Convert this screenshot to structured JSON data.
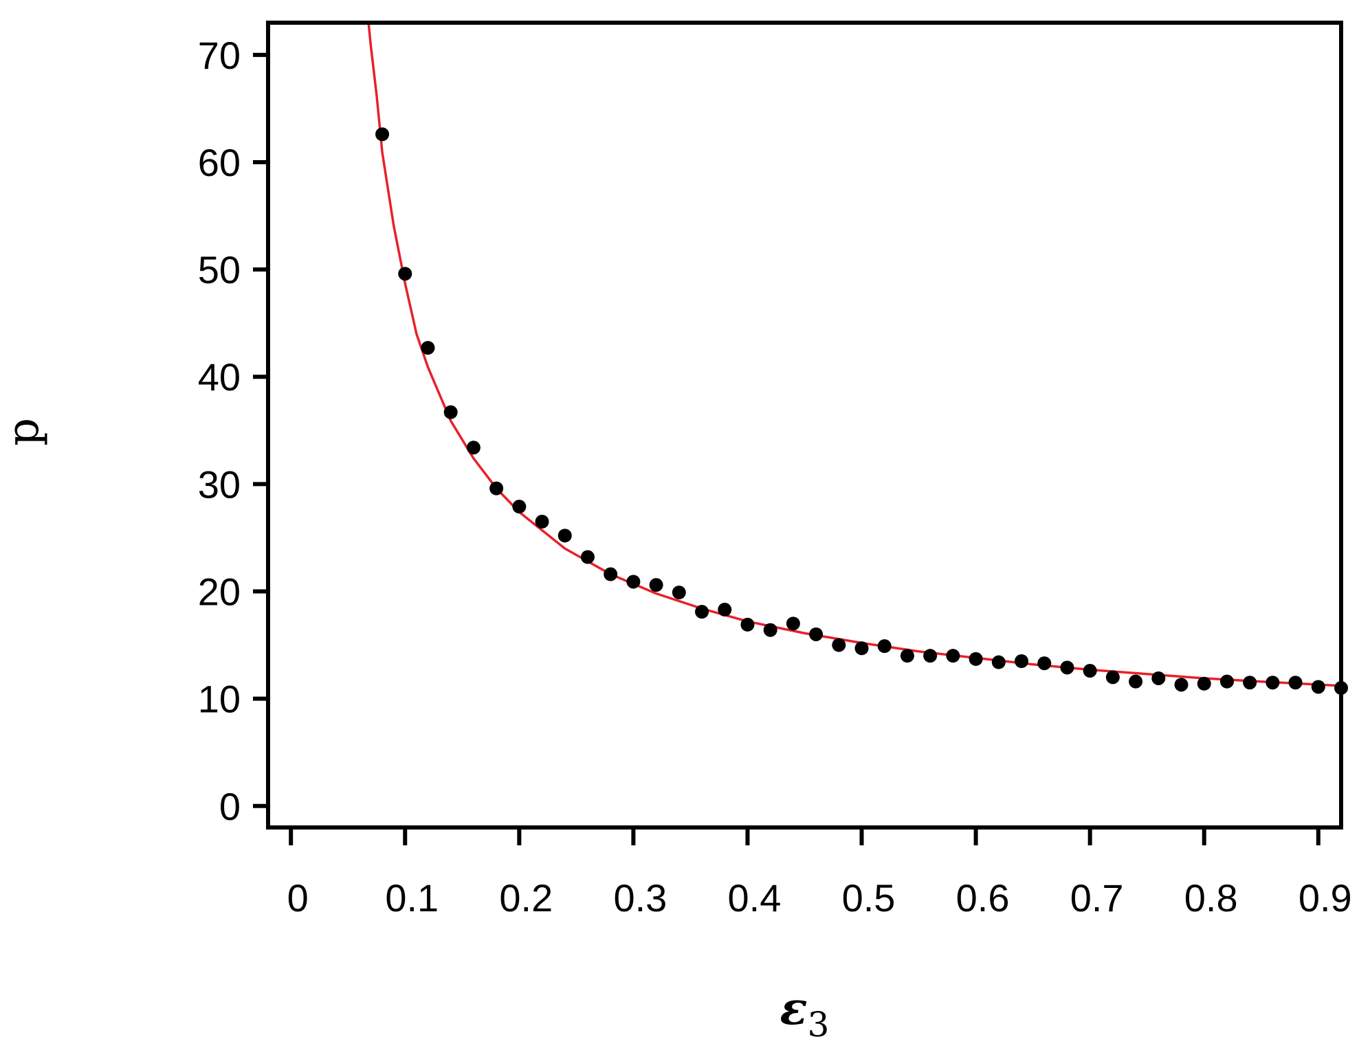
{
  "chart_data": {
    "type": "scatter",
    "xlabel": "ε",
    "xlabel_subscript": "3",
    "ylabel": "p",
    "xlim": [
      -0.02,
      0.92
    ],
    "ylim": [
      -2,
      73
    ],
    "x_ticks": [
      0,
      0.1,
      0.2,
      0.3,
      0.4,
      0.5,
      0.6,
      0.7,
      0.8,
      0.9
    ],
    "x_tick_labels": [
      "0",
      "0.1",
      "0.2",
      "0.3",
      "0.4",
      "0.5",
      "0.6",
      "0.7",
      "0.8",
      "0.9"
    ],
    "y_ticks": [
      0,
      10,
      20,
      30,
      40,
      50,
      60,
      70
    ],
    "y_tick_labels": [
      "0",
      "10",
      "20",
      "30",
      "40",
      "50",
      "60",
      "70"
    ],
    "grid": false,
    "series": [
      {
        "kind": "scatter",
        "color": "#000000",
        "x": [
          0.08,
          0.1,
          0.12,
          0.14,
          0.16,
          0.18,
          0.2,
          0.22,
          0.24,
          0.26,
          0.28,
          0.3,
          0.32,
          0.34,
          0.36,
          0.38,
          0.4,
          0.42,
          0.44,
          0.46,
          0.48,
          0.5,
          0.52,
          0.54,
          0.56,
          0.58,
          0.6,
          0.62,
          0.64,
          0.66,
          0.68,
          0.7,
          0.72,
          0.74,
          0.76,
          0.78,
          0.8,
          0.82,
          0.84,
          0.86,
          0.88,
          0.9,
          0.92
        ],
        "y": [
          62.6,
          49.6,
          42.7,
          36.7,
          33.4,
          29.6,
          27.9,
          26.5,
          25.2,
          23.2,
          21.6,
          20.9,
          20.6,
          19.9,
          18.1,
          18.3,
          16.9,
          16.4,
          17.0,
          16.0,
          15.0,
          14.7,
          14.9,
          14.0,
          14.0,
          14.0,
          13.7,
          13.4,
          13.5,
          13.3,
          12.9,
          12.6,
          12.0,
          11.6,
          11.9,
          11.3,
          11.4,
          11.6,
          11.5,
          11.5,
          11.5,
          11.1,
          11.0
        ]
      },
      {
        "kind": "fit-line",
        "color": "#e8202a",
        "x": [
          0.068,
          0.07,
          0.075,
          0.08,
          0.09,
          0.1,
          0.11,
          0.12,
          0.14,
          0.16,
          0.18,
          0.2,
          0.24,
          0.28,
          0.32,
          0.36,
          0.4,
          0.45,
          0.5,
          0.55,
          0.6,
          0.65,
          0.7,
          0.75,
          0.8,
          0.85,
          0.92
        ],
        "y": [
          73.0,
          70.8,
          66.3,
          60.9,
          54.1,
          48.7,
          44.0,
          40.9,
          35.9,
          32.4,
          29.6,
          27.4,
          24.0,
          21.6,
          19.8,
          18.4,
          17.2,
          16.1,
          15.2,
          14.4,
          13.8,
          13.2,
          12.7,
          12.3,
          11.9,
          11.6,
          11.2
        ]
      }
    ]
  }
}
